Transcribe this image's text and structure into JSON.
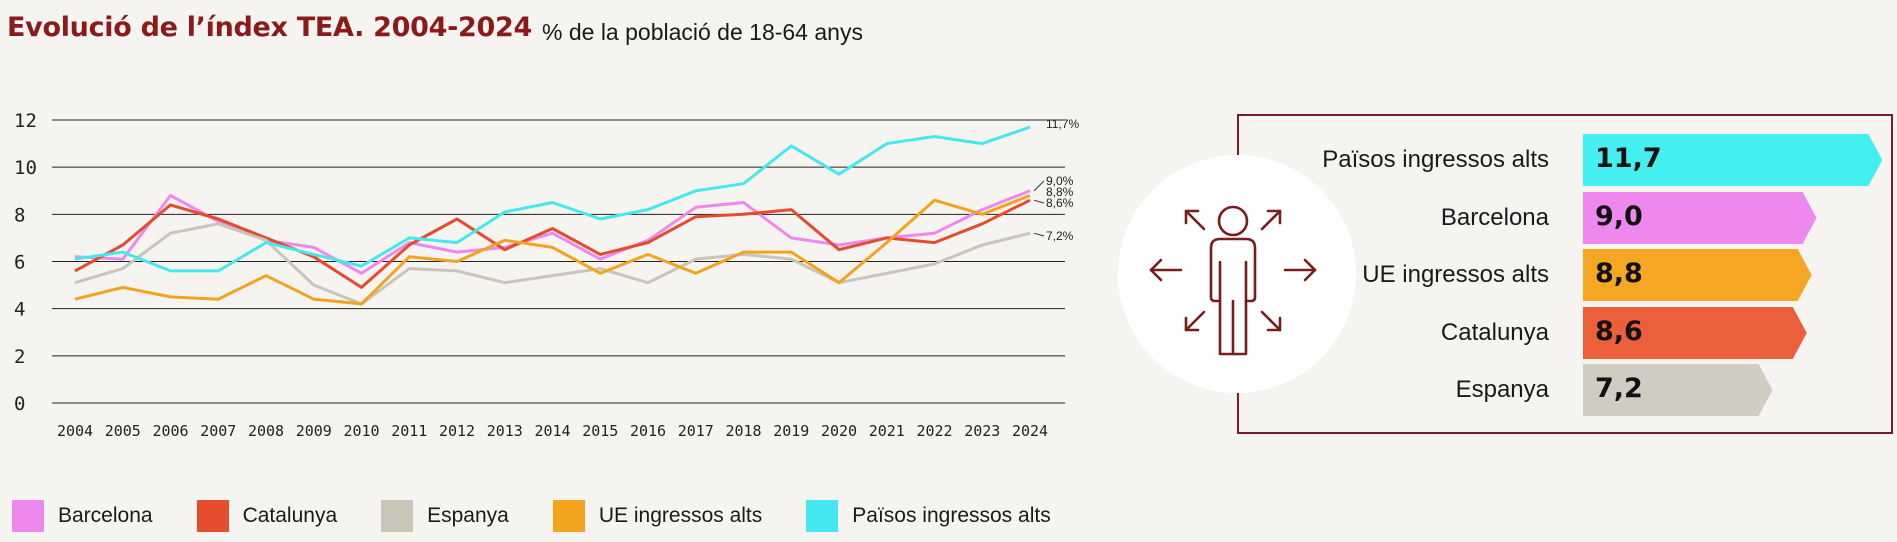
{
  "header": {
    "title": "Evolució de l’índex TEA. 2004-2024",
    "subtitle": "% de la població de 18-64 anys"
  },
  "chart_data": [
    {
      "type": "line",
      "x": [
        "2004",
        "2005",
        "2006",
        "2007",
        "2008",
        "2009",
        "2010",
        "2011",
        "2012",
        "2013",
        "2014",
        "2015",
        "2016",
        "2017",
        "2018",
        "2019",
        "2020",
        "2021",
        "2022",
        "2023",
        "2024"
      ],
      "y_ticks": [
        "0",
        "2",
        "4",
        "6",
        "8",
        "10",
        "12"
      ],
      "ylim": [
        0,
        12
      ],
      "grid": true,
      "legend": "bottom",
      "series": [
        {
          "name": "Barcelona",
          "color": "#ee88ee",
          "values": [
            6.2,
            6.1,
            8.8,
            7.7,
            6.9,
            6.6,
            5.5,
            6.8,
            6.4,
            6.6,
            7.2,
            6.1,
            6.9,
            8.3,
            8.5,
            7.0,
            6.7,
            7.0,
            7.2,
            8.2,
            9.0
          ],
          "end_label": "9,0%"
        },
        {
          "name": "Catalunya",
          "color": "#e54b2d",
          "values": [
            5.6,
            6.7,
            8.4,
            7.8,
            7.0,
            6.2,
            4.9,
            6.7,
            7.8,
            6.5,
            7.4,
            6.3,
            6.8,
            7.9,
            8.0,
            8.2,
            6.5,
            7.0,
            6.8,
            7.6,
            8.6
          ],
          "end_label": "8,6%"
        },
        {
          "name": "Espanya",
          "color": "#c9c5b9",
          "values": [
            5.1,
            5.7,
            7.2,
            7.6,
            6.9,
            5.0,
            4.2,
            5.7,
            5.6,
            5.1,
            5.4,
            5.7,
            5.1,
            6.1,
            6.3,
            6.1,
            5.1,
            5.5,
            5.9,
            6.7,
            7.2
          ],
          "end_label": "7,2%"
        },
        {
          "name": "UE ingressos alts",
          "color": "#f2a41f",
          "values": [
            4.4,
            4.9,
            4.5,
            4.4,
            5.4,
            4.4,
            4.2,
            6.2,
            6.0,
            6.9,
            6.6,
            5.5,
            6.3,
            5.5,
            6.4,
            6.4,
            5.1,
            6.8,
            8.6,
            8.0,
            8.8
          ],
          "end_label": "8,8%"
        },
        {
          "name": "Països ingressos alts",
          "color": "#45e8ee",
          "values": [
            6.1,
            6.4,
            5.6,
            5.6,
            6.8,
            6.3,
            5.8,
            7.0,
            6.8,
            8.1,
            8.5,
            7.8,
            8.2,
            9.0,
            9.3,
            10.9,
            9.7,
            11.0,
            11.3,
            11.0,
            11.7
          ],
          "end_label": "11,7%"
        }
      ]
    },
    {
      "type": "bar",
      "orientation": "horizontal",
      "categories": [
        "Països ingressos alts",
        "Barcelona",
        "UE ingressos alts",
        "Catalunya",
        "Espanya"
      ],
      "values": [
        11.7,
        9.0,
        8.8,
        8.6,
        7.2
      ],
      "value_labels": [
        "11,7",
        "9,0",
        "8,8",
        "8,6",
        "7,2"
      ],
      "colors": [
        "#45eff0",
        "#ee88ee",
        "#f5a623",
        "#eb5f3b",
        "#cfcdc1"
      ]
    }
  ],
  "icons": {
    "illustration": "person-with-arrows-icon"
  },
  "colors": {
    "title": "#8b1a1a",
    "panel_border": "#7a1c2a",
    "icon": "#7a1c1c"
  }
}
